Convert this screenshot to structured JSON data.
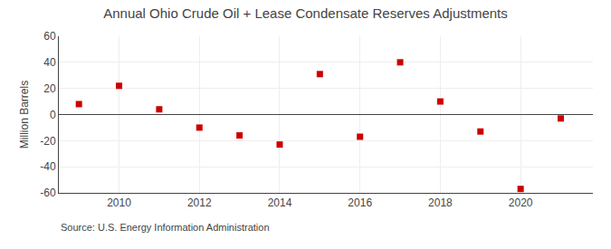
{
  "chart_data": {
    "type": "scatter",
    "title": "Annual Ohio Crude Oil + Lease Condensate Reserves Adjustments",
    "y_label": "Million Barrels",
    "annotations": [
      "Source: U.S. Energy Information Administration"
    ],
    "x": [
      2009,
      2010,
      2011,
      2012,
      2013,
      2014,
      2015,
      2016,
      2017,
      2018,
      2019,
      2020,
      2021
    ],
    "values": [
      8,
      22,
      4,
      -10,
      -16,
      -23,
      31,
      -17,
      40,
      10,
      -13,
      -57,
      -3
    ],
    "color": "#cc0000",
    "marker": "square",
    "xlim": [
      2008.5,
      2021.8
    ],
    "xticks": [
      2010,
      2012,
      2014,
      2016,
      2018,
      2020
    ],
    "ylim": [
      -60,
      60
    ],
    "yticks": [
      -60,
      -40,
      -20,
      0,
      20,
      40,
      60
    ],
    "grid": true
  }
}
